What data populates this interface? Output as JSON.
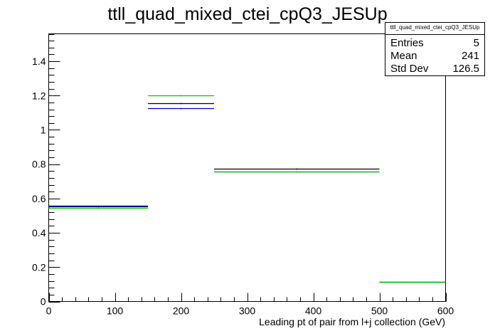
{
  "title": "ttll_quad_mixed_ctei_cpQ3_JESUp",
  "stats": {
    "name": "ttll_quad_mixed_ctei_cpQ3_JESUp",
    "entries_label": "Entries",
    "entries_value": "5",
    "mean_label": "Mean",
    "mean_value": "241",
    "std_label": "Std Dev",
    "std_value": "126.5"
  },
  "chart_data": {
    "type": "line",
    "title": "ttll_quad_mixed_ctei_cpQ3_JESUp",
    "xlabel": "Leading pt of pair from l+j collection (GeV)",
    "ylabel": "",
    "xlim": [
      0,
      600
    ],
    "ylim": [
      0,
      1.56
    ],
    "grid": false,
    "legend": "top-right",
    "x_ticks": [
      0,
      100,
      200,
      300,
      400,
      500,
      600
    ],
    "y_ticks": [
      0,
      0.2,
      0.4,
      0.6,
      0.8,
      1,
      1.2,
      1.4
    ],
    "x_tick_labels": [
      "0",
      "100",
      "200",
      "300",
      "400",
      "500",
      "600"
    ],
    "y_tick_labels": [
      "0",
      "0.2",
      "0.4",
      "0.6",
      "0.8",
      "1",
      "1.2",
      "1.4"
    ],
    "bin_edges": [
      0,
      150,
      250,
      500,
      600
    ],
    "series": [
      {
        "color": "#000000",
        "values": [
          0.558,
          1.155,
          0.775,
          0.113
        ]
      },
      {
        "color": "#0000cc",
        "values": [
          0.553,
          1.127,
          0.757,
          0.113
        ]
      },
      {
        "color": "#00cc00",
        "values": [
          0.547,
          1.2,
          0.757,
          0.113
        ]
      }
    ]
  }
}
